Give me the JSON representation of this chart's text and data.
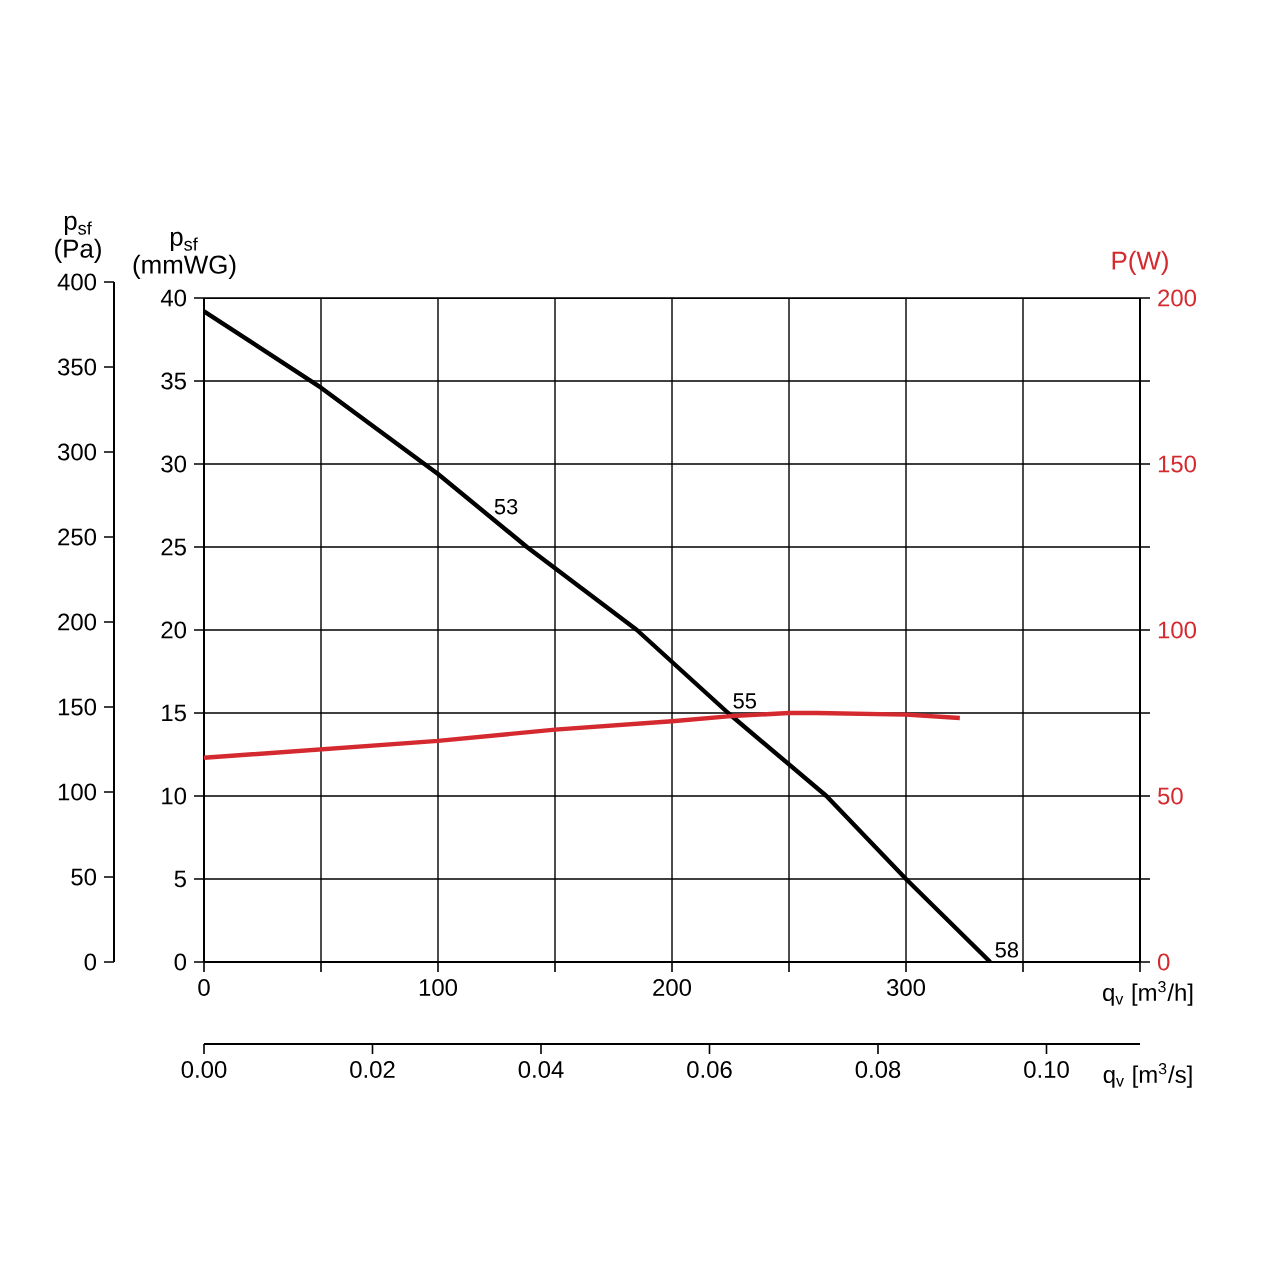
{
  "chart_data": {
    "type": "line",
    "xlabel": "q$_{v}$ [m$^{3}$/h]",
    "ylabel": "p$_{sf}$ (mmWG)",
    "y2label": "P(W)",
    "y3label": "p$_{sf}$ (Pa)",
    "x2label": "q$_{v}$ [m$^{3}$/s]",
    "xlim": [
      0,
      400
    ],
    "xticks": [
      0,
      {
        "value": 50,
        "label": null
      },
      100,
      {
        "value": 150,
        "label": null
      },
      200,
      {
        "value": 250,
        "label": null
      },
      300,
      {
        "value": 350,
        "label": null
      },
      {
        "value": 400,
        "label": null
      }
    ],
    "ylim": [
      0,
      40
    ],
    "yticks": [
      0,
      5,
      10,
      15,
      20,
      25,
      30,
      35,
      40
    ],
    "y2lim": [
      0,
      200
    ],
    "y2ticks": [
      0,
      {
        "value": 25,
        "label": null
      },
      50,
      {
        "value": 75,
        "label": null
      },
      100,
      {
        "value": 125,
        "label": null
      },
      150,
      {
        "value": 175,
        "label": null
      },
      200
    ],
    "y3lim": [
      0,
      400
    ],
    "y3ticks": [
      0,
      50,
      100,
      150,
      200,
      250,
      300,
      350,
      400
    ],
    "x2lim": [
      0,
      0.1111
    ],
    "x2ticks": [
      {
        "value": 0,
        "label": "0.00"
      },
      {
        "value": 0.02,
        "label": "0.02"
      },
      {
        "value": 0.04,
        "label": "0.04"
      },
      {
        "value": 0.06,
        "label": "0.06"
      },
      {
        "value": 0.08,
        "label": "0.08"
      },
      {
        "value": 0.1,
        "label": "0.10"
      }
    ],
    "grid": true,
    "marker": "none",
    "line_style": "solid",
    "series": [
      {
        "color": "#000000",
        "x": [
          0,
          50,
          100,
          138,
          185,
          224,
          266,
          300,
          336
        ],
        "values": [
          39.2,
          34.6,
          29.4,
          25,
          20,
          15,
          10,
          5,
          0
        ]
      },
      {
        "color": "#d42a2f",
        "axis": "y2",
        "x": [
          0,
          100,
          150,
          200,
          224,
          250,
          262,
          300,
          323
        ],
        "values": [
          61.5,
          66.6,
          70,
          72.5,
          74,
          75,
          75,
          74.5,
          73.5
        ]
      }
    ],
    "annotations": [
      {
        "text": "53",
        "x": 122,
        "y": 26.7
      },
      {
        "text": "55",
        "x": 224,
        "y": 15
      },
      {
        "text": "58",
        "x": 336,
        "y": 0
      }
    ]
  }
}
